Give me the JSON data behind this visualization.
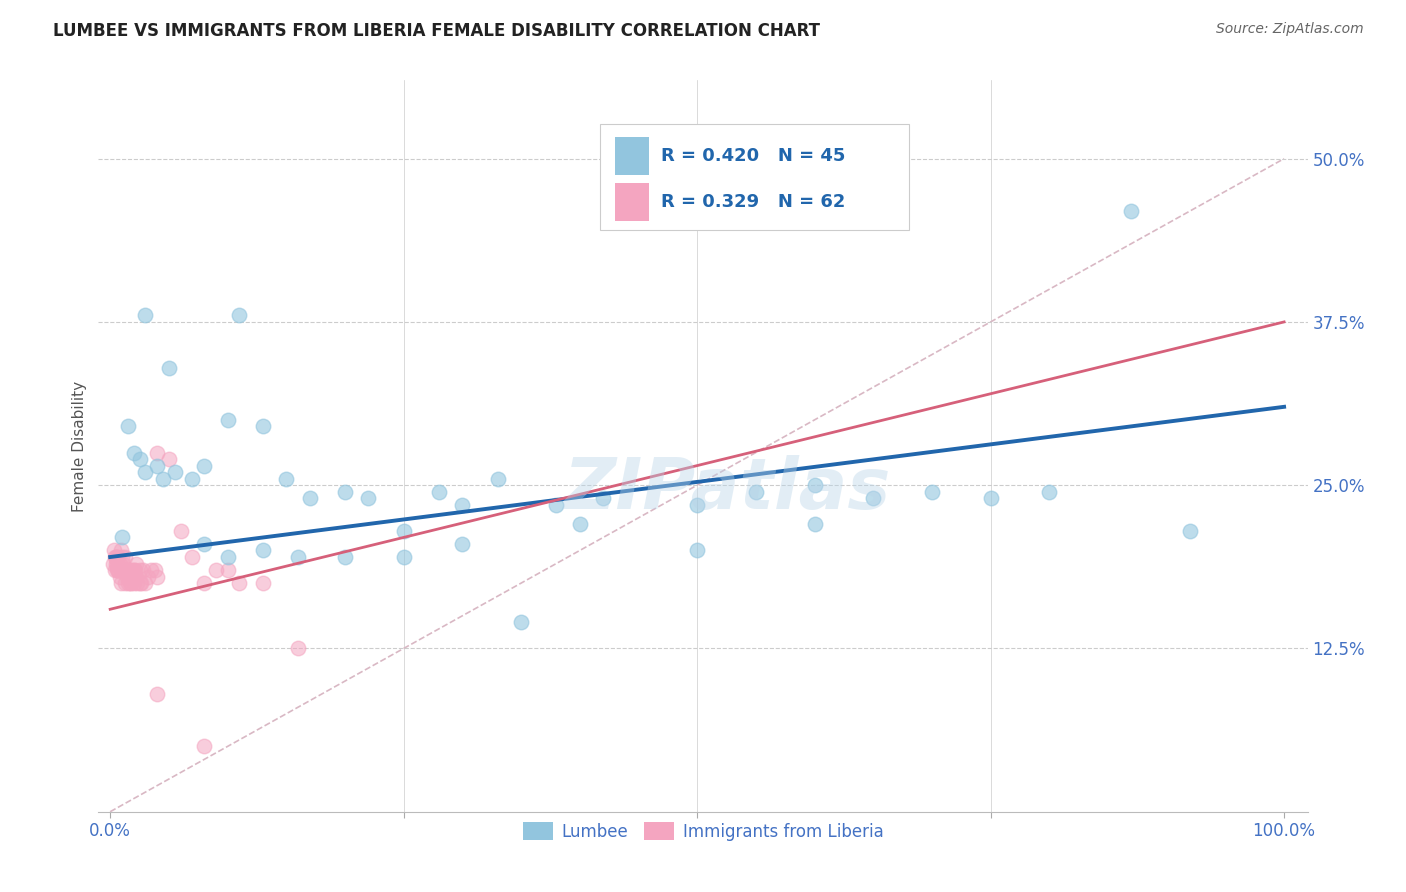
{
  "title": "LUMBEE VS IMMIGRANTS FROM LIBERIA FEMALE DISABILITY CORRELATION CHART",
  "source": "Source: ZipAtlas.com",
  "ylabel": "Female Disability",
  "ytick_labels": [
    "12.5%",
    "25.0%",
    "37.5%",
    "50.0%"
  ],
  "ytick_values": [
    0.125,
    0.25,
    0.375,
    0.5
  ],
  "xlim": [
    -0.01,
    1.02
  ],
  "ylim": [
    0.0,
    0.56
  ],
  "lumbee_color": "#92c5de",
  "liberia_color": "#f4a5c0",
  "lumbee_line_color": "#2166ac",
  "liberia_line_color": "#d6607a",
  "diagonal_color": "#d9b8c4",
  "legend_R_lumbee": "R = 0.420",
  "legend_N_lumbee": "N = 45",
  "legend_R_liberia": "R = 0.329",
  "legend_N_liberia": "N = 62",
  "legend_text_color": "#2166ac",
  "lumbee_label": "Lumbee",
  "liberia_label": "Immigrants from Liberia",
  "watermark": "ZIPatlas",
  "lumbee_slope": 0.115,
  "lumbee_intercept": 0.195,
  "liberia_slope": 0.22,
  "liberia_intercept": 0.155,
  "lumbee_x": [
    0.01,
    0.015,
    0.02,
    0.025,
    0.03,
    0.04,
    0.045,
    0.055,
    0.07,
    0.08,
    0.1,
    0.11,
    0.13,
    0.15,
    0.17,
    0.2,
    0.22,
    0.25,
    0.28,
    0.3,
    0.33,
    0.38,
    0.42,
    0.5,
    0.55,
    0.6,
    0.65,
    0.7,
    0.75,
    0.8,
    0.87,
    0.92,
    0.03,
    0.05,
    0.08,
    0.1,
    0.13,
    0.16,
    0.2,
    0.25,
    0.3,
    0.35,
    0.4,
    0.5,
    0.6
  ],
  "lumbee_y": [
    0.21,
    0.295,
    0.275,
    0.27,
    0.26,
    0.265,
    0.255,
    0.26,
    0.255,
    0.265,
    0.3,
    0.38,
    0.295,
    0.255,
    0.24,
    0.245,
    0.24,
    0.215,
    0.245,
    0.235,
    0.255,
    0.235,
    0.24,
    0.235,
    0.245,
    0.25,
    0.24,
    0.245,
    0.24,
    0.245,
    0.46,
    0.215,
    0.38,
    0.34,
    0.205,
    0.195,
    0.2,
    0.195,
    0.195,
    0.195,
    0.205,
    0.145,
    0.22,
    0.2,
    0.22
  ],
  "liberia_x": [
    0.002,
    0.003,
    0.004,
    0.004,
    0.005,
    0.005,
    0.006,
    0.006,
    0.007,
    0.007,
    0.008,
    0.008,
    0.009,
    0.009,
    0.01,
    0.01,
    0.011,
    0.012,
    0.013,
    0.013,
    0.014,
    0.015,
    0.015,
    0.016,
    0.017,
    0.018,
    0.019,
    0.02,
    0.02,
    0.021,
    0.022,
    0.023,
    0.025,
    0.026,
    0.028,
    0.03,
    0.032,
    0.035,
    0.038,
    0.04,
    0.005,
    0.007,
    0.009,
    0.011,
    0.013,
    0.015,
    0.017,
    0.019,
    0.022,
    0.025,
    0.04,
    0.05,
    0.06,
    0.07,
    0.08,
    0.09,
    0.1,
    0.11,
    0.13,
    0.16,
    0.04,
    0.08
  ],
  "liberia_y": [
    0.19,
    0.2,
    0.185,
    0.195,
    0.19,
    0.195,
    0.185,
    0.19,
    0.195,
    0.185,
    0.18,
    0.19,
    0.185,
    0.2,
    0.195,
    0.185,
    0.19,
    0.185,
    0.195,
    0.185,
    0.18,
    0.175,
    0.185,
    0.18,
    0.185,
    0.175,
    0.18,
    0.185,
    0.175,
    0.185,
    0.18,
    0.175,
    0.185,
    0.175,
    0.185,
    0.175,
    0.18,
    0.185,
    0.185,
    0.18,
    0.195,
    0.185,
    0.175,
    0.185,
    0.175,
    0.185,
    0.175,
    0.185,
    0.19,
    0.175,
    0.275,
    0.27,
    0.215,
    0.195,
    0.175,
    0.185,
    0.185,
    0.175,
    0.175,
    0.125,
    0.09,
    0.05
  ]
}
